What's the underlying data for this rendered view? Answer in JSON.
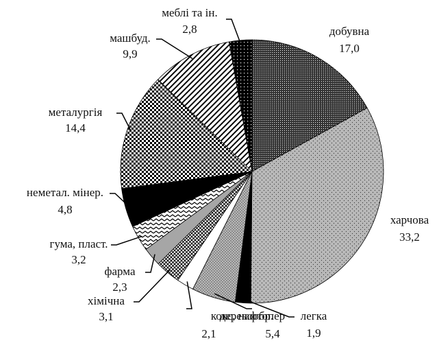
{
  "chart_data": {
    "type": "pie",
    "categories": [
      "добувна",
      "харчова",
      "легка",
      "деревообр.",
      "кокс, нафтопер",
      "хімічна",
      "фарма",
      "гума, пласт.",
      "неметал. мінер.",
      "металургія",
      "машбуд.",
      "меблі та ін."
    ],
    "values": [
      17.0,
      33.2,
      1.9,
      5.4,
      2.1,
      3.1,
      2.3,
      3.2,
      4.8,
      14.4,
      9.9,
      2.8
    ],
    "value_labels": [
      "17,0",
      "33,2",
      "1,9",
      "5,4",
      "2,1",
      "3,1",
      "2,3",
      "3,2",
      "4,8",
      "14,4",
      "9,9",
      "2,8"
    ],
    "colors": [
      "#333333",
      "#b8b8b8",
      "#000000",
      "#8a8a8a",
      "#ffffff",
      "#ffffff",
      "#a6a6a6",
      "#ffffff",
      "#000000",
      "#ffffff",
      "#ffffff",
      "#000000"
    ]
  }
}
